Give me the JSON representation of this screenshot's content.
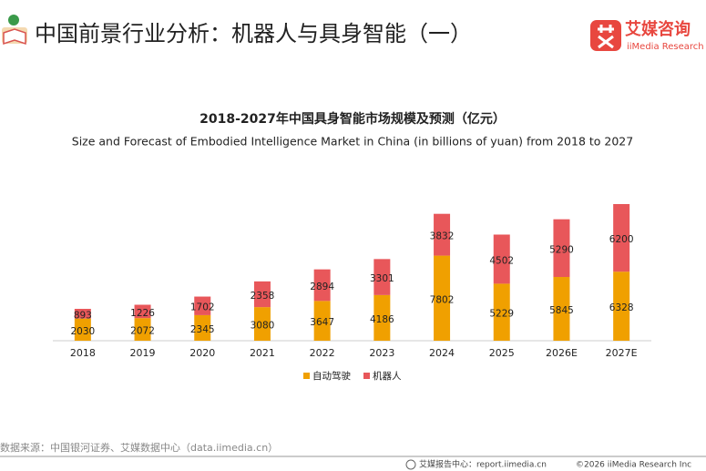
{
  "header": {
    "title": "中国前景行业分析：机器人与具身智能（一）",
    "brand": "艾媒咨询",
    "brand_en": "iiMedia Research"
  },
  "chart_data": {
    "type": "bar",
    "stacked": true,
    "title": "2018-2027年中国具身智能市场规模及预测（亿元）",
    "subtitle": "Size and Forecast of Embodied Intelligence Market in China (in billions of yuan) from 2018 to 2027",
    "categories": [
      "2018",
      "2019",
      "2020",
      "2021",
      "2022",
      "2023",
      "2024",
      "2025",
      "2026E",
      "2027E"
    ],
    "series": [
      {
        "name": "自动驾驶",
        "color": "#f0a000",
        "values": [
          2030,
          2072,
          2345,
          3080,
          3647,
          4186,
          7802,
          5229,
          5845,
          6328
        ]
      },
      {
        "name": "机器人",
        "color": "#e8575a",
        "values": [
          893,
          1226,
          1702,
          2358,
          2894,
          3301,
          3832,
          4502,
          5290,
          6200
        ]
      }
    ],
    "legend": "bottom"
  },
  "footer": {
    "source": "数据来源：中国银河证券、艾媒数据中心（data.iimedia.cn）",
    "report_center": "艾媒报告中心：report.iimedia.cn",
    "copyright": "©2026  iiMedia Research  Inc"
  }
}
